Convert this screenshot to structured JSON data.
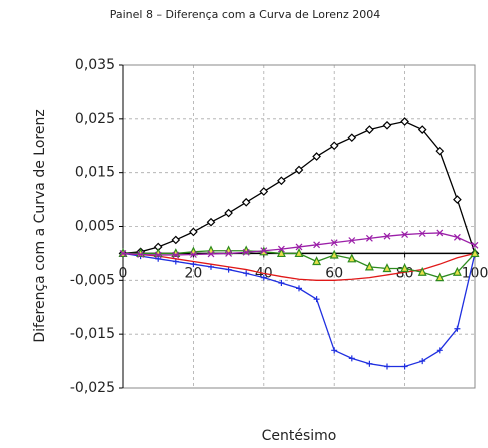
{
  "chart_data": {
    "type": "line",
    "title": "Painel 8 – Diferença com a Curva de Lorenz 2004",
    "y_label": "Diferença com a Curva de Lorenz",
    "x_label": "Centésimo",
    "x": [
      0,
      5,
      10,
      15,
      20,
      25,
      30,
      35,
      40,
      45,
      50,
      55,
      60,
      65,
      70,
      75,
      80,
      85,
      90,
      95,
      100
    ],
    "series": [
      {
        "color": "#000000",
        "marker": "diamond",
        "values": [
          0,
          0.0003,
          0.0012,
          0.0025,
          0.004,
          0.0058,
          0.0075,
          0.0095,
          0.0115,
          0.0135,
          0.0155,
          0.018,
          0.02,
          0.0215,
          0.023,
          0.0238,
          0.0245,
          0.023,
          0.019,
          0.01,
          0
        ]
      },
      {
        "color": "#1f2fe0",
        "marker": "plus",
        "values": [
          0,
          -0.0005,
          -0.001,
          -0.0015,
          -0.002,
          -0.0025,
          -0.003,
          -0.0037,
          -0.0045,
          -0.0055,
          -0.0065,
          -0.0085,
          -0.018,
          -0.0195,
          -0.0205,
          -0.021,
          -0.021,
          -0.02,
          -0.018,
          -0.014,
          0
        ]
      },
      {
        "color": "#e01818",
        "marker": "none",
        "values": [
          0,
          -0.0002,
          -0.0005,
          -0.001,
          -0.0015,
          -0.002,
          -0.0025,
          -0.003,
          -0.0037,
          -0.0043,
          -0.0048,
          -0.005,
          -0.005,
          -0.0048,
          -0.0045,
          -0.004,
          -0.0035,
          -0.003,
          -0.002,
          -0.0008,
          0
        ]
      },
      {
        "color": "#2e8b1e",
        "marker": "triangle",
        "values": [
          0,
          0,
          0,
          0,
          0.0003,
          0.0005,
          0.0005,
          0.0005,
          0.0003,
          0,
          0,
          -0.0015,
          -0.0003,
          -0.001,
          -0.0025,
          -0.0028,
          -0.0028,
          -0.0035,
          -0.0045,
          -0.0035,
          0
        ]
      },
      {
        "color": "#9b1fa8",
        "marker": "x",
        "values": [
          0,
          -0.0002,
          -0.0003,
          -0.0003,
          -0.0002,
          -0.0001,
          0,
          0.0002,
          0.0005,
          0.0008,
          0.0012,
          0.0016,
          0.002,
          0.0024,
          0.0028,
          0.0032,
          0.0035,
          0.0037,
          0.0038,
          0.003,
          0.0015
        ]
      }
    ],
    "xlim": [
      0,
      100
    ],
    "xticks": [
      0,
      20,
      40,
      60,
      80,
      100
    ],
    "ylim": [
      -0.025,
      0.035
    ],
    "yticks": [
      {
        "value": -0.025,
        "label": "-0,025"
      },
      {
        "value": -0.015,
        "label": "-0,015"
      },
      {
        "value": -0.005,
        "label": "-0,005"
      },
      {
        "value": 0.005,
        "label": "0,005"
      },
      {
        "value": 0.015,
        "label": "0,015"
      },
      {
        "value": 0.025,
        "label": "0,025"
      },
      {
        "value": 0.035,
        "label": "0,035"
      }
    ],
    "grid": true
  }
}
